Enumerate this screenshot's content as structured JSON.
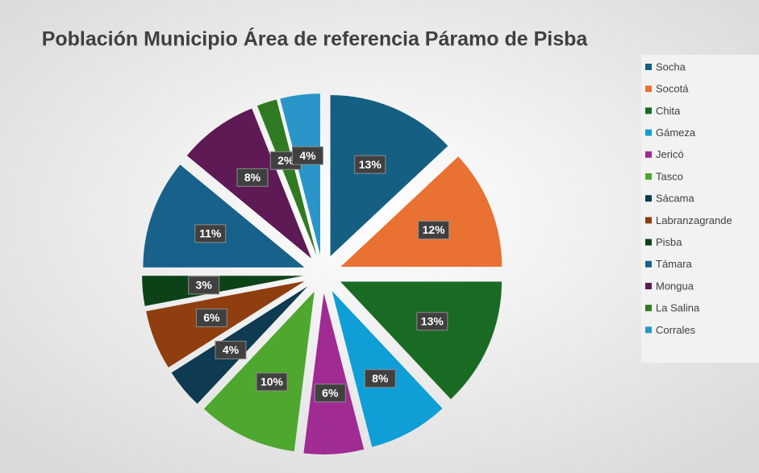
{
  "chart_data": {
    "type": "pie",
    "title": "Población Municipio Área de referencia Páramo de Pisba",
    "categories": [
      "Socha",
      "Socotá",
      "Chita",
      "Gámeza",
      "Jericó",
      "Tasco",
      "Sácama",
      "Labranzagrande",
      "Pisba",
      "Támara",
      "Mongua",
      "La Salina",
      "Corrales"
    ],
    "values": [
      13,
      12,
      13,
      8,
      6,
      10,
      4,
      6,
      3,
      11,
      8,
      2,
      4
    ],
    "value_labels": [
      "13%",
      "12%",
      "13%",
      "8%",
      "6%",
      "10%",
      "4%",
      "6%",
      "3%",
      "11%",
      "8%",
      "2%",
      "4%"
    ],
    "colors": [
      "#156082",
      "#e97132",
      "#196b24",
      "#0f9ed5",
      "#a02b93",
      "#4ea72e",
      "#0e3a52",
      "#8f3e10",
      "#0d4218",
      "#17618a",
      "#5e1a55",
      "#2f7a22",
      "#2a95c9"
    ],
    "legend": "right"
  }
}
